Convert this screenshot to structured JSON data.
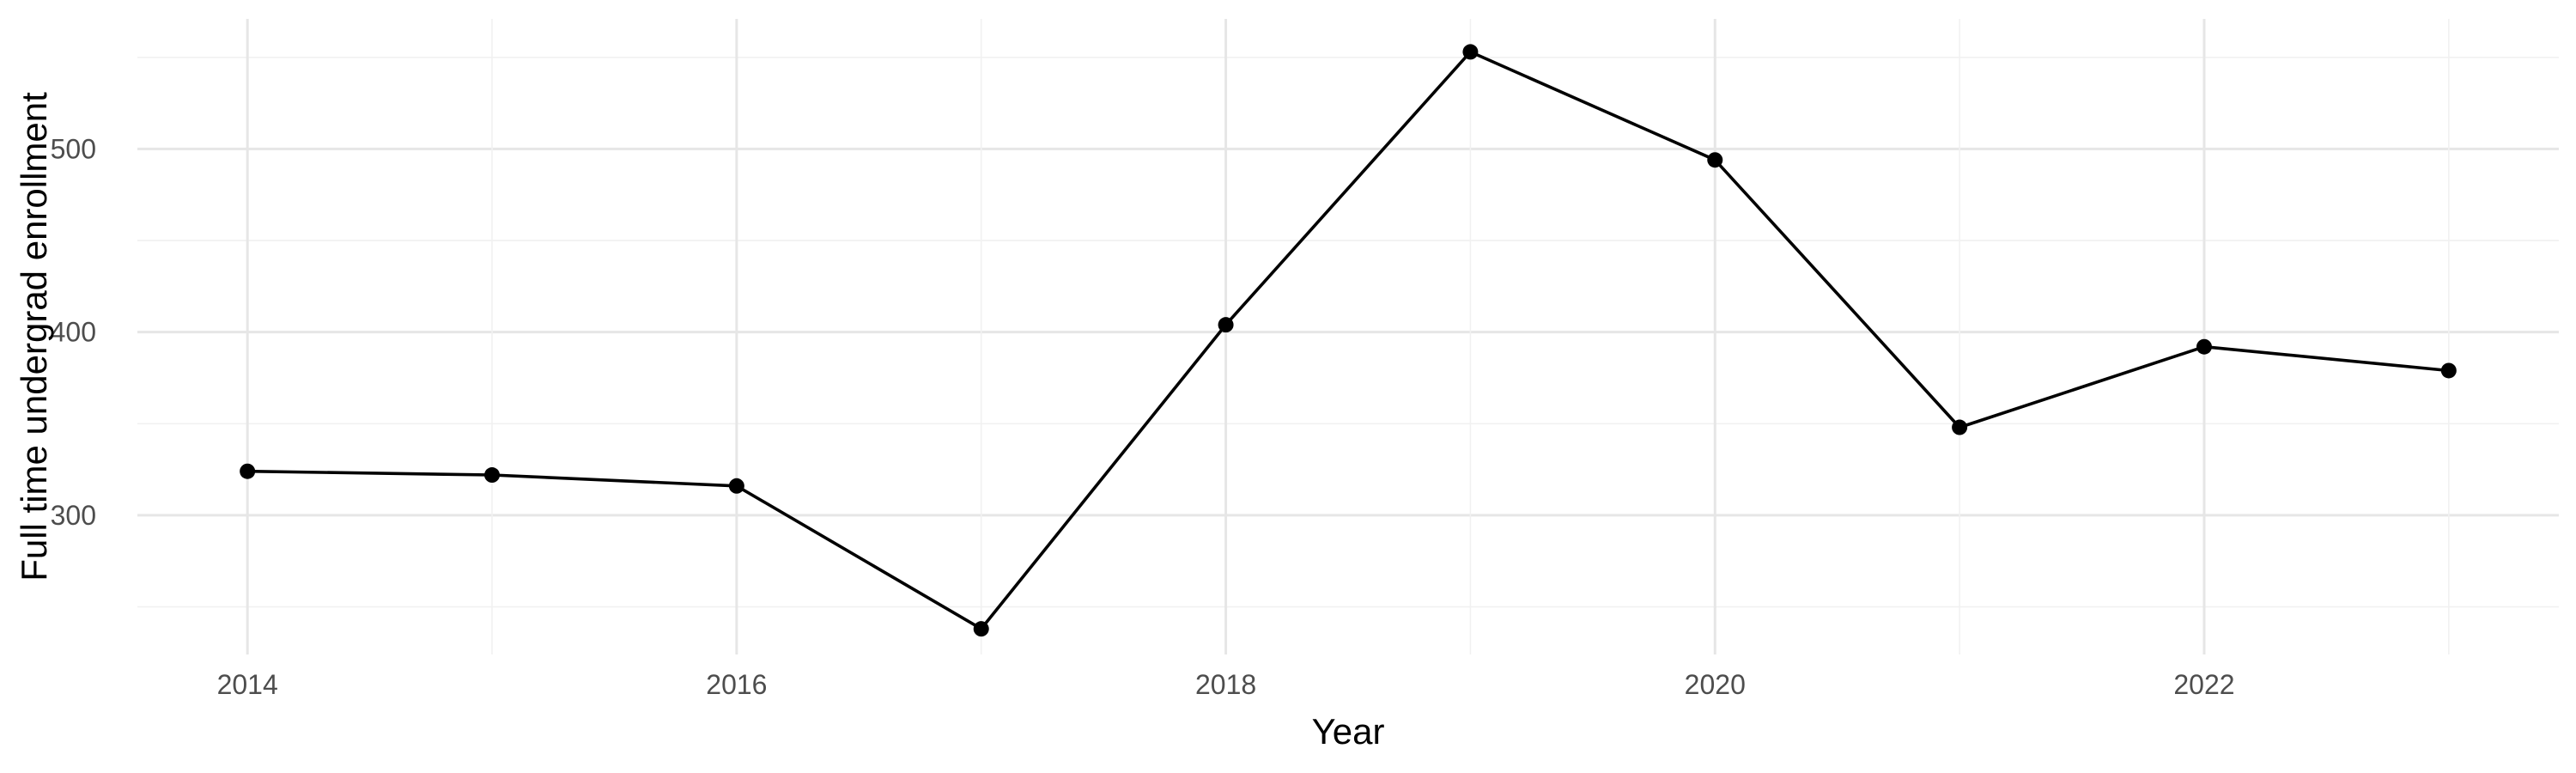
{
  "chart_data": {
    "type": "line",
    "title": "",
    "xlabel": "Year",
    "ylabel": "Full time undergrad enrollment",
    "x": [
      2014,
      2015,
      2016,
      2017,
      2018,
      2019,
      2020,
      2021,
      2022,
      2023
    ],
    "series": [
      {
        "values": [
          324,
          322,
          316,
          238,
          404,
          553,
          494,
          348,
          392,
          379
        ]
      }
    ],
    "xlim": [
      2013.55,
      2023.45
    ],
    "ylim": [
      224,
      571
    ],
    "x_ticks": [
      2014,
      2016,
      2018,
      2020,
      2022
    ],
    "x_tick_labels": [
      "2014",
      "2016",
      "2018",
      "2020",
      "2022"
    ],
    "y_ticks": [
      300,
      400,
      500
    ],
    "y_tick_labels": [
      "300",
      "400",
      "500"
    ],
    "grid": true,
    "legend": "none",
    "colors": {
      "line": "#000000",
      "grid": "#e6e6e6",
      "tick_text": "#4d4d4d"
    }
  }
}
